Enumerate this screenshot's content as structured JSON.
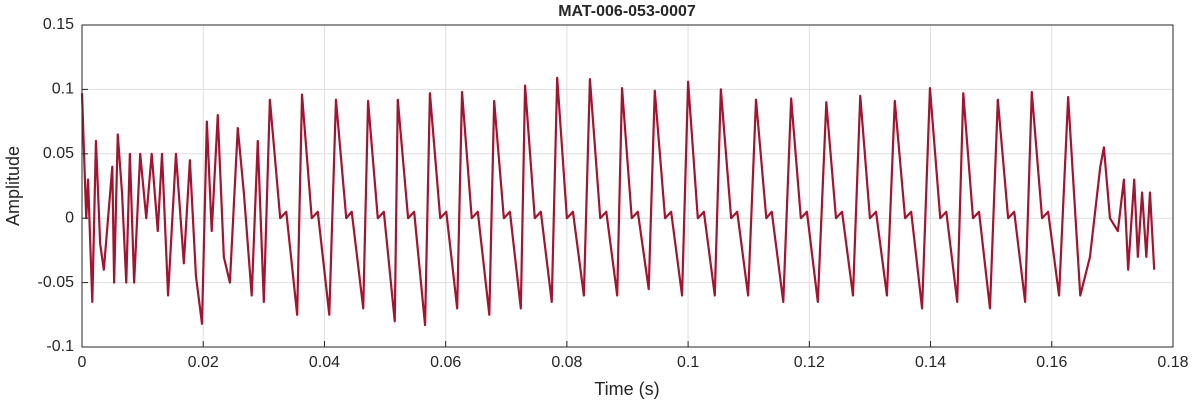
{
  "chart_data": {
    "type": "line",
    "title": "MAT-006-053-0007",
    "x_label": "Time (s)",
    "y_label": "Amplitude",
    "grid": true,
    "xlim": [
      0,
      0.18
    ],
    "xticks": [
      0,
      0.02,
      0.04,
      0.06,
      0.08,
      0.1,
      0.12,
      0.14,
      0.16,
      0.18
    ],
    "ylim": [
      -0.1,
      0.15
    ],
    "yticks": [
      -0.1,
      -0.05,
      0,
      0.05,
      0.1,
      0.15
    ],
    "series": [
      {
        "color": "#a2142f",
        "x": [
          0,
          0.0007,
          0.001,
          0.0017,
          0.0023,
          0.003,
          0.0036,
          0.0043,
          0.005,
          0.0053,
          0.0059,
          0.0066,
          0.0073,
          0.0079,
          0.0086,
          0.0096,
          0.0106,
          0.0115,
          0.0125,
          0.0132,
          0.0142,
          0.0155,
          0.0168,
          0.0178,
          0.0188,
          0.0198,
          0.0206,
          0.0214,
          0.0224,
          0.0234,
          0.0244,
          0.0257,
          0.0267,
          0.028,
          0.029,
          0.03,
          0.031,
          0.0327,
          0.0337,
          0.0355,
          0.0363,
          0.0379,
          0.0389,
          0.0408,
          0.0419,
          0.0436,
          0.0445,
          0.0464,
          0.0472,
          0.0488,
          0.0498,
          0.0516,
          0.0521,
          0.0538,
          0.0548,
          0.0566,
          0.0574,
          0.0591,
          0.0601,
          0.0619,
          0.0627,
          0.0643,
          0.0653,
          0.0672,
          0.068,
          0.0696,
          0.0706,
          0.0724,
          0.0731,
          0.0747,
          0.0757,
          0.0775,
          0.0784,
          0.08,
          0.081,
          0.0828,
          0.0838,
          0.0855,
          0.0865,
          0.0883,
          0.0891,
          0.0907,
          0.0917,
          0.0935,
          0.0945,
          0.0962,
          0.0972,
          0.099,
          0.1,
          0.1016,
          0.1026,
          0.1044,
          0.1054,
          0.1071,
          0.1081,
          0.1099,
          0.1112,
          0.1129,
          0.1138,
          0.1157,
          0.117,
          0.1186,
          0.1196,
          0.1214,
          0.1228,
          0.1244,
          0.1254,
          0.1272,
          0.1284,
          0.13,
          0.131,
          0.1328,
          0.1341,
          0.1358,
          0.1368,
          0.1386,
          0.1399,
          0.1416,
          0.1426,
          0.1444,
          0.1454,
          0.147,
          0.148,
          0.1498,
          0.1511,
          0.1528,
          0.1538,
          0.1556,
          0.1567,
          0.1584,
          0.1594,
          0.1612,
          0.1627,
          0.1647,
          0.1663,
          0.168,
          0.1686,
          0.1696,
          0.1709,
          0.1719,
          0.1726,
          0.1736,
          0.1742,
          0.1749,
          0.1756,
          0.1762,
          0.1769
        ],
        "values": [
          0.097,
          0,
          0.03,
          -0.065,
          0.06,
          -0.02,
          -0.04,
          0,
          0.04,
          -0.05,
          0.065,
          0.02,
          -0.05,
          0.05,
          -0.05,
          0.05,
          0,
          0.05,
          -0.01,
          0.05,
          -0.06,
          0.05,
          -0.035,
          0.045,
          -0.045,
          -0.082,
          0.075,
          -0.01,
          0.08,
          -0.03,
          -0.05,
          0.07,
          0.02,
          -0.06,
          0.06,
          -0.065,
          0.092,
          0,
          0.005,
          -0.075,
          0.096,
          0,
          0.005,
          -0.075,
          0.092,
          0,
          0.005,
          -0.07,
          0.091,
          0,
          0.005,
          -0.08,
          0.092,
          0,
          0.005,
          -0.083,
          0.097,
          0,
          0.005,
          -0.07,
          0.098,
          0,
          0.005,
          -0.075,
          0.091,
          0,
          0.005,
          -0.07,
          0.103,
          0,
          0.005,
          -0.065,
          0.109,
          0,
          0.005,
          -0.06,
          0.108,
          0,
          0.005,
          -0.06,
          0.101,
          0,
          0.005,
          -0.055,
          0.099,
          0,
          0.005,
          -0.06,
          0.106,
          0,
          0.005,
          -0.06,
          0.1,
          0,
          0.005,
          -0.06,
          0.092,
          0,
          0.005,
          -0.065,
          0.093,
          0,
          0.005,
          -0.065,
          0.09,
          0,
          0.005,
          -0.06,
          0.095,
          0,
          0.005,
          -0.06,
          0.091,
          0,
          0.005,
          -0.07,
          0.101,
          0,
          0.005,
          -0.065,
          0.097,
          0,
          0.005,
          -0.07,
          0.092,
          0,
          0.005,
          -0.065,
          0.098,
          0,
          0.005,
          -0.06,
          0.094,
          -0.06,
          -0.03,
          0.04,
          0.055,
          0,
          -0.01,
          0.03,
          -0.04,
          0.03,
          -0.03,
          0.02,
          -0.03,
          0.02,
          -0.04
        ]
      }
    ]
  }
}
